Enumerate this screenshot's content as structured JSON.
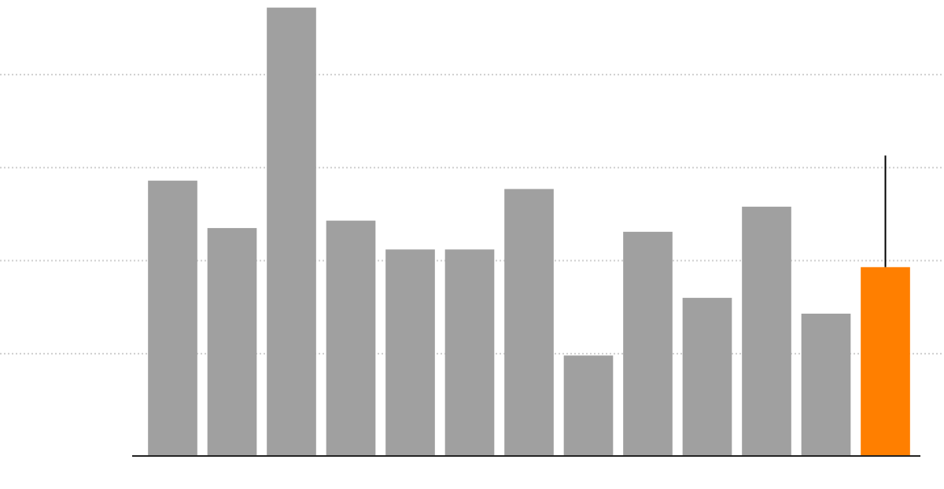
{
  "chart_data": {
    "type": "bar",
    "categories": [
      null,
      null,
      null,
      null,
      null,
      null,
      null,
      null,
      null,
      null,
      null,
      null,
      null
    ],
    "values": [
      29.6,
      24.5,
      48.2,
      25.3,
      22.2,
      22.2,
      28.7,
      10.8,
      24.1,
      17.0,
      26.8,
      15.3,
      20.3
    ],
    "errors": [
      null,
      null,
      null,
      null,
      null,
      null,
      null,
      null,
      null,
      null,
      null,
      null,
      12.0
    ],
    "colors": [
      "#a0a0a0",
      "#a0a0a0",
      "#a0a0a0",
      "#a0a0a0",
      "#a0a0a0",
      "#a0a0a0",
      "#a0a0a0",
      "#a0a0a0",
      "#a0a0a0",
      "#a0a0a0",
      "#a0a0a0",
      "#a0a0a0",
      "#ff7f00"
    ],
    "ylim": [
      0,
      49
    ],
    "yticks": [
      11,
      21,
      31,
      41
    ],
    "grid": true
  }
}
